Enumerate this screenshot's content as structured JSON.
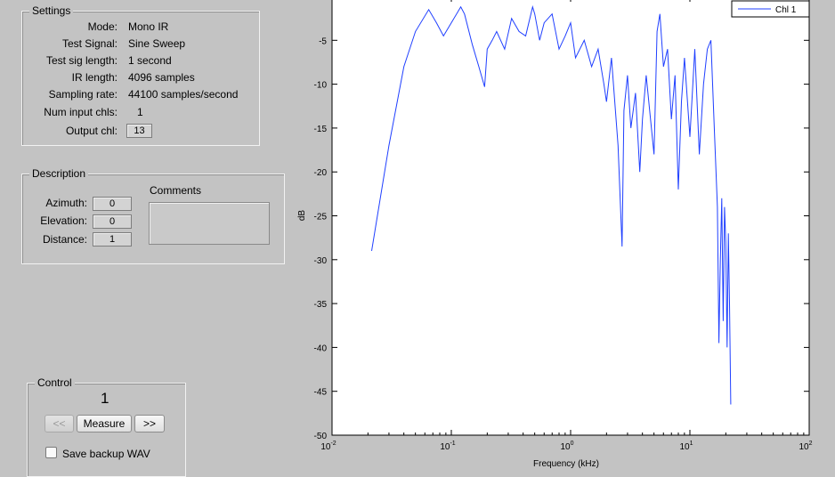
{
  "settings": {
    "title": "Settings",
    "rows": [
      {
        "label": "Mode:",
        "value": "Mono IR"
      },
      {
        "label": "Test Signal:",
        "value": "Sine Sweep"
      },
      {
        "label": "Test sig length:",
        "value": "1 second"
      },
      {
        "label": "IR length:",
        "value": "4096 samples"
      },
      {
        "label": "Sampling rate:",
        "value": "44100 samples/second"
      },
      {
        "label": "Num input chls:",
        "value": "1"
      },
      {
        "label": "Output chl:",
        "value": "13"
      }
    ]
  },
  "description": {
    "title": "Description",
    "azimuth_label": "Azimuth:",
    "azimuth_value": "0",
    "elevation_label": "Elevation:",
    "elevation_value": "0",
    "distance_label": "Distance:",
    "distance_value": "1",
    "comments_label": "Comments",
    "comments_value": ""
  },
  "control": {
    "title": "Control",
    "counter": "1",
    "prev_label": "<<",
    "measure_label": "Measure",
    "next_label": ">>",
    "backup_label": "Save backup WAV",
    "backup_checked": false
  },
  "chart_data": {
    "type": "line",
    "title": "",
    "xlabel": "Frequency (kHz)",
    "ylabel": "dB",
    "xscale": "log",
    "xlim": [
      0.01,
      100
    ],
    "ylim": [
      -50,
      0
    ],
    "x_tick_labels": [
      {
        "base": "10",
        "exp": "-2"
      },
      {
        "base": "10",
        "exp": "-1"
      },
      {
        "base": "10",
        "exp": "0"
      },
      {
        "base": "10",
        "exp": "1"
      },
      {
        "base": "10",
        "exp": "2"
      }
    ],
    "y_ticks": [
      -50,
      -45,
      -40,
      -35,
      -30,
      -25,
      -20,
      -15,
      -10,
      -5
    ],
    "legend_position": "top-right",
    "line_color": "#1f3fff",
    "series": [
      {
        "name": "Chl 1",
        "x": [
          0.0215,
          0.03,
          0.04,
          0.05,
          0.0646,
          0.075,
          0.086,
          0.1,
          0.12,
          0.129,
          0.15,
          0.17,
          0.19,
          0.2,
          0.22,
          0.24,
          0.28,
          0.32,
          0.37,
          0.42,
          0.48,
          0.5,
          0.55,
          0.6,
          0.7,
          0.8,
          0.9,
          1.0,
          1.1,
          1.3,
          1.5,
          1.7,
          1.9,
          2.0,
          2.2,
          2.5,
          2.7,
          2.8,
          3.0,
          3.2,
          3.5,
          3.8,
          4.0,
          4.3,
          4.6,
          5.0,
          5.3,
          5.6,
          6.0,
          6.5,
          7.0,
          7.5,
          8.0,
          8.5,
          9.0,
          10.0,
          11.0,
          12.0,
          13.0,
          14.0,
          15.0,
          16.0,
          17.0,
          17.5,
          18.0,
          18.5,
          19.0,
          19.5,
          20.0,
          20.5,
          21.0,
          21.5,
          22.0
        ],
        "y": [
          -29,
          -17,
          -8,
          -4,
          -1.5,
          -3,
          -4.5,
          -3,
          -1.2,
          -2,
          -5.5,
          -8,
          -10.3,
          -6,
          -5,
          -4,
          -6,
          -2.5,
          -4,
          -4.5,
          -1.2,
          -2,
          -5,
          -3,
          -2,
          -6,
          -4.5,
          -3,
          -7,
          -5,
          -8,
          -6,
          -10,
          -12,
          -7,
          -17,
          -28.5,
          -13,
          -9,
          -15,
          -11,
          -20,
          -14,
          -9,
          -13,
          -18,
          -4,
          -2,
          -8,
          -6,
          -14,
          -9,
          -22,
          -12,
          -7,
          -16,
          -6,
          -18,
          -10,
          -6,
          -5,
          -15,
          -24,
          -39.5,
          -30,
          -23,
          -37,
          -24,
          -28,
          -40,
          -27,
          -35,
          -46.5
        ]
      }
    ]
  }
}
